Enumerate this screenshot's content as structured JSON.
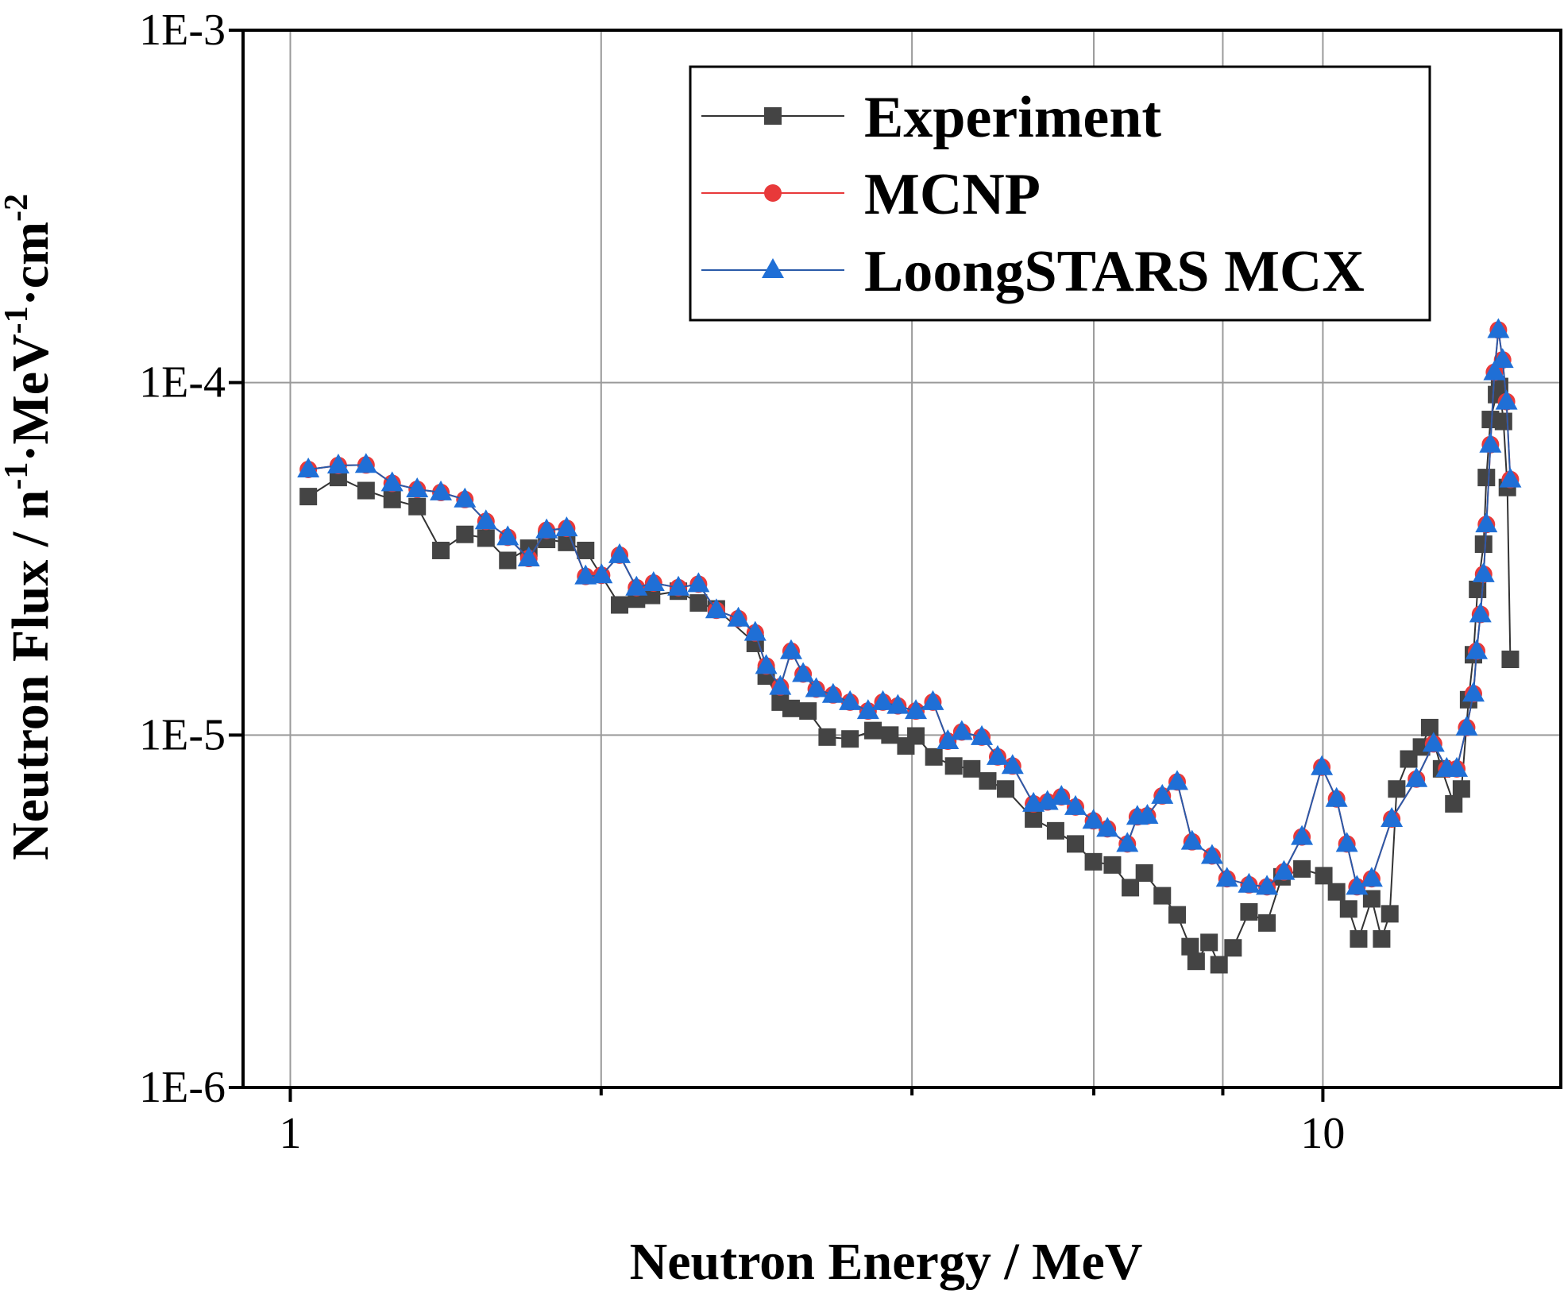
{
  "chart_data": {
    "type": "line",
    "title": "",
    "xlabel": "Neutron Energy / MeV",
    "ylabel_parts": [
      {
        "text": "Neutron Flux / n"
      },
      {
        "sup": "-1"
      },
      {
        "text": "·MeV"
      },
      {
        "sup": "-1"
      },
      {
        "text": "·cm"
      },
      {
        "sup": "-2"
      }
    ],
    "xscale": "log",
    "yscale": "log",
    "xlim": [
      0.9,
      17.0
    ],
    "ylim": [
      1e-06,
      0.001
    ],
    "xticks": [
      {
        "value": 1,
        "label": "1"
      },
      {
        "value": 10,
        "label": "10"
      }
    ],
    "yticks": [
      {
        "value": 0.001,
        "label": "1E-3"
      },
      {
        "value": 0.0001,
        "label": "1E-4"
      },
      {
        "value": 1e-05,
        "label": "1E-5"
      },
      {
        "value": 1e-06,
        "label": "1E-6"
      }
    ],
    "x_gridlines": [
      1,
      2,
      4,
      6,
      8,
      10
    ],
    "y_gridlines": [
      0.0001,
      1e-05
    ],
    "grid": true,
    "legend_position": "top-right",
    "series": [
      {
        "name": "Experiment",
        "marker": "square",
        "color": "#444444",
        "line_color": "#333333",
        "x": [
          1.041,
          1.113,
          1.184,
          1.255,
          1.327,
          1.399,
          1.476,
          1.547,
          1.624,
          1.702,
          1.771,
          1.852,
          1.932,
          2.084,
          2.164,
          2.238,
          2.376,
          2.485,
          2.586,
          2.82,
          2.89,
          2.982,
          3.055,
          3.172,
          3.311,
          3.484,
          3.667,
          3.808,
          3.946,
          4.035,
          4.2,
          4.39,
          4.57,
          4.736,
          4.929,
          5.245,
          5.51,
          5.76,
          5.995,
          6.254,
          6.51,
          6.716,
          6.99,
          7.226,
          7.438,
          7.538,
          7.759,
          7.933,
          8.185,
          8.481,
          8.828,
          9.128,
          9.544,
          10.02,
          10.31,
          10.59,
          10.83,
          11.15,
          11.4,
          11.61,
          11.79,
          12.11,
          12.46,
          12.69,
          13.03,
          13.39,
          13.62,
          13.84,
          13.99,
          14.12,
          14.31,
          14.4,
          14.53,
          14.73,
          14.83,
          14.96,
          15.09,
          15.19
        ],
        "y": [
          4.75e-05,
          5.38e-05,
          4.94e-05,
          4.66e-05,
          4.45e-05,
          3.34e-05,
          3.71e-05,
          3.62e-05,
          3.13e-05,
          3.39e-05,
          3.59e-05,
          3.52e-05,
          3.34e-05,
          2.34e-05,
          2.43e-05,
          2.49e-05,
          2.56e-05,
          2.37e-05,
          2.28e-05,
          1.82e-05,
          1.47e-05,
          1.24e-05,
          1.19e-05,
          1.17e-05,
          9.87e-06,
          9.75e-06,
          1.03e-05,
          1e-05,
          9.31e-06,
          9.94e-06,
          8.67e-06,
          8.17e-06,
          8.02e-06,
          7.41e-06,
          7.03e-06,
          5.78e-06,
          5.35e-06,
          4.91e-06,
          4.37e-06,
          4.28e-06,
          3.69e-06,
          4.06e-06,
          3.5e-06,
          3.09e-06,
          2.51e-06,
          2.28e-06,
          2.58e-06,
          2.23e-06,
          2.49e-06,
          3.15e-06,
          2.93e-06,
          3.96e-06,
          4.17e-06,
          3.99e-06,
          3.59e-06,
          3.21e-06,
          2.64e-06,
          3.43e-06,
          2.64e-06,
          3.11e-06,
          7.03e-06,
          8.55e-06,
          9.25e-06,
          1.05e-05,
          8.02e-06,
          6.38e-06,
          7.03e-06,
          1.26e-05,
          1.69e-05,
          2.59e-05,
          3.48e-05,
          5.38e-05,
          7.86e-05,
          9.25e-05,
          9.75e-05,
          7.76e-05,
          5.04e-05,
          1.64e-05
        ]
      },
      {
        "name": "MCNP",
        "marker": "circle",
        "color": "#e8393a",
        "line_color": "#e8393a",
        "x": [
          1.041,
          1.113,
          1.184,
          1.255,
          1.327,
          1.399,
          1.476,
          1.547,
          1.624,
          1.702,
          1.771,
          1.852,
          1.932,
          2.002,
          2.084,
          2.164,
          2.248,
          2.376,
          2.485,
          2.586,
          2.716,
          2.82,
          2.89,
          2.982,
          3.055,
          3.138,
          3.231,
          3.355,
          3.484,
          3.627,
          3.749,
          3.876,
          4.035,
          4.191,
          4.333,
          4.47,
          4.674,
          4.842,
          5.006,
          5.245,
          5.411,
          5.582,
          5.76,
          5.995,
          6.185,
          6.466,
          6.612,
          6.761,
          6.99,
          7.226,
          7.47,
          7.811,
          8.075,
          8.481,
          8.828,
          9.169,
          9.544,
          9.977,
          10.31,
          10.55,
          10.79,
          11.15,
          11.66,
          12.32,
          12.8,
          13.18,
          13.48,
          13.78,
          13.99,
          14.09,
          14.21,
          14.31,
          14.4,
          14.53,
          14.66,
          14.79,
          14.93,
          15.06,
          15.19
        ],
        "y": [
          5.67e-05,
          5.82e-05,
          5.84e-05,
          5.18e-05,
          4.98e-05,
          4.88e-05,
          4.66e-05,
          4.04e-05,
          3.64e-05,
          3.17e-05,
          3.81e-05,
          3.86e-05,
          2.82e-05,
          2.84e-05,
          3.24e-05,
          2.62e-05,
          2.7e-05,
          2.62e-05,
          2.68e-05,
          2.26e-05,
          2.14e-05,
          1.95e-05,
          1.57e-05,
          1.37e-05,
          1.73e-05,
          1.49e-05,
          1.35e-05,
          1.3e-05,
          1.24e-05,
          1.17e-05,
          1.24e-05,
          1.21e-05,
          1.17e-05,
          1.24e-05,
          9.61e-06,
          1.02e-05,
          9.87e-06,
          8.67e-06,
          8.17e-06,
          6.38e-06,
          6.46e-06,
          6.68e-06,
          6.25e-06,
          5.71e-06,
          5.42e-06,
          4.91e-06,
          5.86e-06,
          5.9e-06,
          6.72e-06,
          7.36e-06,
          4.98e-06,
          4.54e-06,
          3.91e-06,
          3.76e-06,
          3.71e-06,
          4.09e-06,
          5.14e-06,
          8.11e-06,
          6.59e-06,
          4.91e-06,
          3.71e-06,
          3.91e-06,
          5.78e-06,
          7.5e-06,
          9.44e-06,
          8.02e-06,
          8.02e-06,
          1.05e-05,
          1.31e-05,
          1.73e-05,
          2.2e-05,
          2.86e-05,
          3.96e-05,
          6.67e-05,
          0.000107,
          0.000141,
          0.000116,
          8.83e-05,
          5.31e-05
        ]
      },
      {
        "name": "LoongSTARS MCX",
        "marker": "triangle",
        "color": "#1f6fd6",
        "line_color": "#2a5aa8",
        "x": [
          1.041,
          1.113,
          1.184,
          1.255,
          1.327,
          1.399,
          1.476,
          1.547,
          1.624,
          1.702,
          1.771,
          1.852,
          1.932,
          2.002,
          2.084,
          2.164,
          2.248,
          2.376,
          2.485,
          2.586,
          2.716,
          2.82,
          2.89,
          2.982,
          3.055,
          3.138,
          3.231,
          3.355,
          3.484,
          3.627,
          3.749,
          3.876,
          4.035,
          4.191,
          4.333,
          4.47,
          4.674,
          4.842,
          5.006,
          5.245,
          5.411,
          5.582,
          5.76,
          5.995,
          6.185,
          6.466,
          6.612,
          6.761,
          6.99,
          7.226,
          7.47,
          7.811,
          8.075,
          8.481,
          8.828,
          9.169,
          9.544,
          9.977,
          10.31,
          10.55,
          10.79,
          11.15,
          11.66,
          12.32,
          12.8,
          13.18,
          13.48,
          13.78,
          13.99,
          14.09,
          14.21,
          14.31,
          14.4,
          14.53,
          14.66,
          14.79,
          14.93,
          15.06,
          15.19
        ],
        "y": [
          5.67e-05,
          5.82e-05,
          5.84e-05,
          5.18e-05,
          4.98e-05,
          4.88e-05,
          4.66e-05,
          4.04e-05,
          3.64e-05,
          3.17e-05,
          3.81e-05,
          3.86e-05,
          2.82e-05,
          2.84e-05,
          3.24e-05,
          2.62e-05,
          2.7e-05,
          2.62e-05,
          2.68e-05,
          2.26e-05,
          2.14e-05,
          1.95e-05,
          1.57e-05,
          1.37e-05,
          1.73e-05,
          1.49e-05,
          1.35e-05,
          1.3e-05,
          1.24e-05,
          1.17e-05,
          1.24e-05,
          1.21e-05,
          1.17e-05,
          1.24e-05,
          9.61e-06,
          1.02e-05,
          9.87e-06,
          8.67e-06,
          8.17e-06,
          6.38e-06,
          6.46e-06,
          6.68e-06,
          6.25e-06,
          5.71e-06,
          5.42e-06,
          4.91e-06,
          5.86e-06,
          5.9e-06,
          6.72e-06,
          7.36e-06,
          4.98e-06,
          4.54e-06,
          3.91e-06,
          3.76e-06,
          3.71e-06,
          4.09e-06,
          5.14e-06,
          8.11e-06,
          6.59e-06,
          4.91e-06,
          3.71e-06,
          3.91e-06,
          5.78e-06,
          7.5e-06,
          9.44e-06,
          8.02e-06,
          8.02e-06,
          1.05e-05,
          1.31e-05,
          1.73e-05,
          2.2e-05,
          2.86e-05,
          3.96e-05,
          6.67e-05,
          0.000107,
          0.000141,
          0.000116,
          8.83e-05,
          5.31e-05
        ]
      }
    ]
  }
}
